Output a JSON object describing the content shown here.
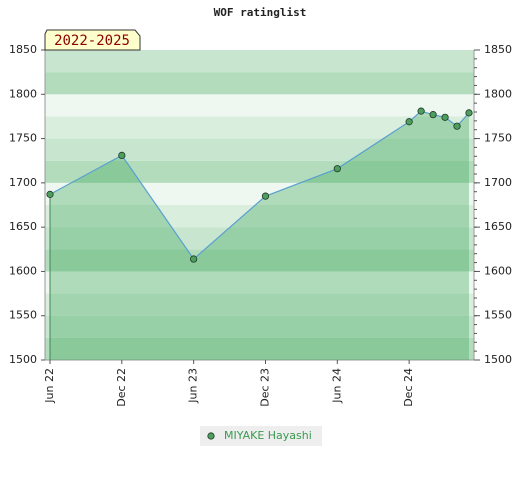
{
  "chart_data": {
    "type": "area",
    "title": "WOF ratinglist",
    "badge": "2022-2025",
    "x": [
      "2022-06",
      "2022-12",
      "2023-06",
      "2023-12",
      "2024-06",
      "2024-12",
      "2025-01",
      "2025-02",
      "2025-03",
      "2025-04",
      "2025-05"
    ],
    "series": [
      {
        "name": "MIYAKE Hayashi",
        "color": "#5aa0d0",
        "marker_color": "#4e9e5e",
        "values": [
          1687,
          1731,
          1614,
          1685,
          1716,
          1769,
          1781,
          1777,
          1774,
          1764,
          1779
        ]
      }
    ],
    "xlim": [
      "2022-06",
      "2025-05"
    ],
    "xticks": [
      {
        "value": "2022-06",
        "label": "Jun 22"
      },
      {
        "value": "2022-12",
        "label": "Dec 22"
      },
      {
        "value": "2023-06",
        "label": "Jun 23"
      },
      {
        "value": "2023-12",
        "label": "Dec 23"
      },
      {
        "value": "2024-06",
        "label": "Jun 24"
      },
      {
        "value": "2024-12",
        "label": "Dec 24"
      }
    ],
    "ylim": [
      1500,
      1850
    ],
    "yticks": [
      1500,
      1550,
      1600,
      1650,
      1700,
      1750,
      1800,
      1850
    ],
    "y2lim": [
      1500,
      1850
    ],
    "y2ticks": [
      1500,
      1550,
      1600,
      1650,
      1700,
      1750,
      1800,
      1850
    ],
    "legend": "bottom"
  }
}
